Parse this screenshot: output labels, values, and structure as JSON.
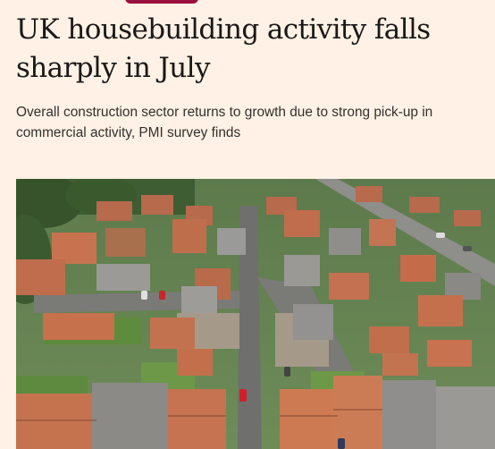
{
  "article": {
    "headline": "UK housebuilding activity falls sharply in July",
    "standfirst": "Overall construction sector returns to growth due to strong pick-up in commercial activity, PMI survey finds"
  },
  "image": {
    "subject": "aerial-housing-estate"
  },
  "colors": {
    "background": "#fff1e5",
    "headline_text": "#1a1817",
    "standfirst_text": "#33302e",
    "accent": "#990f3d"
  }
}
